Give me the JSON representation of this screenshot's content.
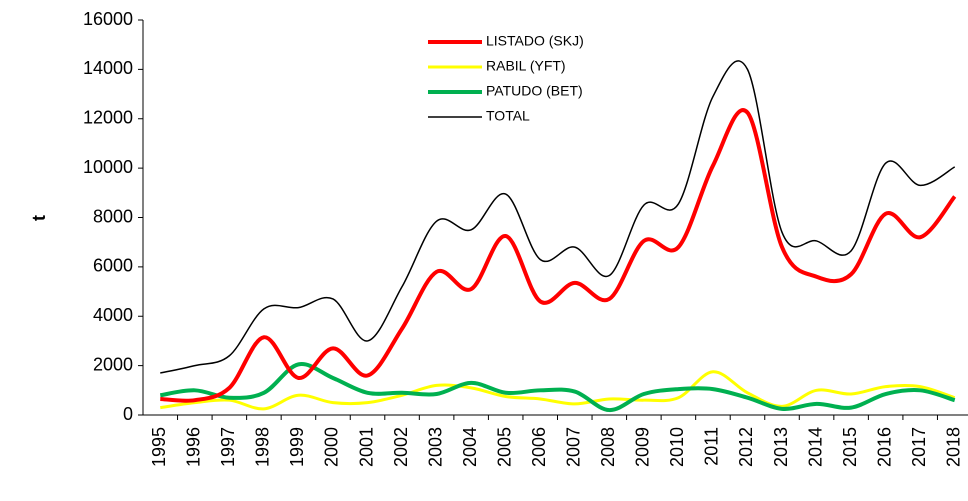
{
  "chart_data": {
    "type": "line",
    "y_label": "t",
    "categories": [
      "1995",
      "1996",
      "1997",
      "1998",
      "1999",
      "2000",
      "2001",
      "2002",
      "2003",
      "2004",
      "2005",
      "2006",
      "2007",
      "2008",
      "2009",
      "2010",
      "2011",
      "2012",
      "2013",
      "2014",
      "2015",
      "2016",
      "2017",
      "2018"
    ],
    "series": [
      {
        "name": "LISTADO (SKJ)",
        "color": "#ff0000",
        "width": 4,
        "values": [
          650,
          600,
          1100,
          3150,
          1500,
          2700,
          1600,
          3500,
          5800,
          5100,
          7250,
          4600,
          5350,
          4700,
          7050,
          6800,
          10100,
          12250,
          6800,
          5600,
          5700,
          8150,
          7200,
          8850
        ]
      },
      {
        "name": "RABIL (YFT)",
        "color": "#ffff00",
        "width": 3,
        "values": [
          300,
          500,
          600,
          250,
          800,
          500,
          500,
          800,
          1200,
          1100,
          750,
          650,
          450,
          650,
          600,
          700,
          1750,
          900,
          350,
          1000,
          850,
          1150,
          1150,
          700
        ]
      },
      {
        "name": "PATUDO (BET)",
        "color": "#00b050",
        "width": 4,
        "values": [
          800,
          1000,
          700,
          900,
          2050,
          1500,
          900,
          900,
          850,
          1300,
          900,
          1000,
          950,
          200,
          850,
          1050,
          1050,
          700,
          250,
          450,
          300,
          850,
          1000,
          600
        ]
      },
      {
        "name": "TOTAL",
        "color": "#000000",
        "width": 1.5,
        "values": [
          1700,
          2000,
          2400,
          4300,
          4350,
          4700,
          3000,
          5200,
          7850,
          7500,
          8950,
          6300,
          6800,
          5650,
          8500,
          8550,
          12900,
          14000,
          7400,
          7050,
          6650,
          10200,
          9300,
          10050
        ]
      }
    ],
    "ylim": [
      0,
      16000
    ],
    "yticks": [
      0,
      2000,
      4000,
      6000,
      8000,
      10000,
      12000,
      14000,
      16000
    ]
  }
}
